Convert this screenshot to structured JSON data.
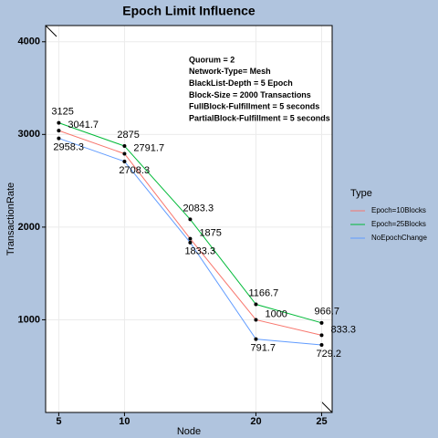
{
  "chart_data": {
    "type": "line",
    "title": "Epoch Limit Influence",
    "x_label": "Node",
    "y_label": "TransactionRate",
    "x": [
      5,
      10,
      15,
      20,
      25
    ],
    "series": [
      {
        "name": "Epoch=10Blocks",
        "color": "#F8766D",
        "values": [
          3041.7,
          2791.7,
          1875,
          1000,
          833.3
        ]
      },
      {
        "name": "Epoch=25Blocks",
        "color": "#00BA38",
        "values": [
          3125,
          2875,
          2083.3,
          1166.7,
          966.7
        ]
      },
      {
        "name": "NoEpochChange",
        "color": "#619CFF",
        "values": [
          2958.3,
          2708.3,
          1833.3,
          791.7,
          729.2
        ]
      }
    ],
    "xlim": [
      4,
      25.8
    ],
    "xticks": [
      5,
      10,
      20,
      25
    ],
    "ylim": [
      0,
      4175
    ],
    "yticks": [
      1000,
      2000,
      3000,
      4000
    ],
    "grid": true,
    "legend_title": "Type",
    "legend_position": "right",
    "annotations": [
      "Quorum = 2",
      "Network-Type= Mesh",
      "BlackList-Depth = 5 Epoch",
      "Block-Size = 2000 Transactions",
      "FullBlock-Fulfillment = 5 seconds",
      "PartialBlock-Fulfillment = 5 seconds"
    ]
  }
}
